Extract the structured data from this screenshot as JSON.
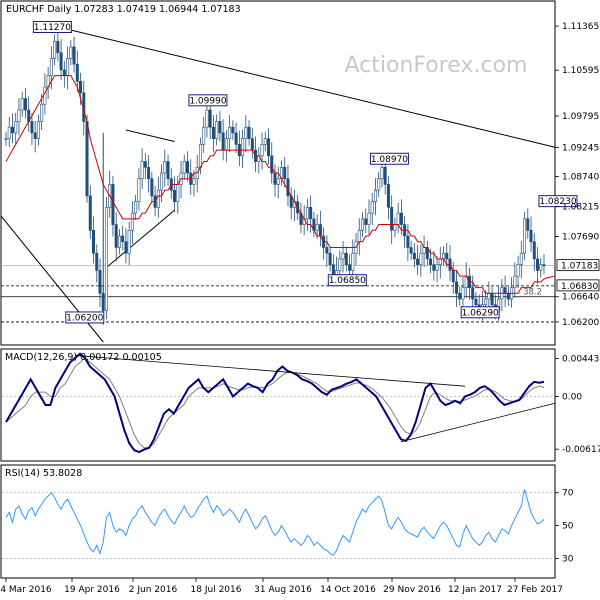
{
  "header": {
    "instrument": "EURCHF Daily",
    "ohlc": "1.07283 1.07419 1.06944 1.07183",
    "watermark": "ActionForex.com"
  },
  "chart_data": [
    {
      "type": "candlestick",
      "title": "EURCHF Daily 1.07283 1.07419 1.06944 1.07183",
      "ylim": [
        1.0585,
        1.1175
      ],
      "y_ticks": [
        "1.11365",
        "1.10595",
        "1.09795",
        "1.09245",
        "1.08740",
        "1.08215",
        "1.07690",
        "1.06640",
        "1.06200"
      ],
      "y_tick_values": [
        1.11365,
        1.10595,
        1.09795,
        1.09245,
        1.0874,
        1.08215,
        1.0769,
        1.0664,
        1.062
      ],
      "price_tags": [
        {
          "text": "1.07183",
          "value": 1.07183,
          "style": "boxed"
        },
        {
          "text": "1.06830",
          "value": 1.0683,
          "style": "boxed"
        }
      ],
      "fib_label": "38.2",
      "annotations": [
        {
          "text": "1.11270",
          "date_index": 14,
          "value": 1.1127
        },
        {
          "text": "1.09990",
          "date_index": 62,
          "value": 1.0999
        },
        {
          "text": "1.08970",
          "date_index": 118,
          "value": 1.0897
        },
        {
          "text": "1.08230",
          "date_index": 170,
          "value": 1.0823
        },
        {
          "text": "1.06850",
          "date_index": 105,
          "value": 1.0685
        },
        {
          "text": "1.06290",
          "date_index": 146,
          "value": 1.0629
        },
        {
          "text": "1.06200",
          "date_index": 24,
          "value": 1.062
        }
      ],
      "horizontal_levels": [
        1.07183,
        1.0683,
        1.0664,
        1.062
      ],
      "ma_color": "#cc0000",
      "candle_color": "#1f4e79",
      "close_series": [
        1.094,
        1.096,
        1.095,
        1.097,
        1.099,
        1.101,
        1.099,
        1.097,
        1.095,
        1.094,
        1.097,
        1.1,
        1.103,
        1.105,
        1.108,
        1.111,
        1.109,
        1.106,
        1.105,
        1.108,
        1.11,
        1.107,
        1.104,
        1.102,
        1.097,
        1.084,
        1.078,
        1.074,
        1.071,
        1.067,
        1.064,
        1.082,
        1.086,
        1.079,
        1.075,
        1.077,
        1.076,
        1.074,
        1.078,
        1.081,
        1.083,
        1.087,
        1.09,
        1.089,
        1.087,
        1.084,
        1.082,
        1.085,
        1.088,
        1.09,
        1.087,
        1.085,
        1.083,
        1.086,
        1.088,
        1.09,
        1.088,
        1.086,
        1.087,
        1.089,
        1.093,
        1.096,
        1.099,
        1.096,
        1.094,
        1.097,
        1.095,
        1.092,
        1.094,
        1.096,
        1.095,
        1.093,
        1.091,
        1.094,
        1.096,
        1.094,
        1.092,
        1.09,
        1.091,
        1.093,
        1.094,
        1.091,
        1.088,
        1.086,
        1.087,
        1.089,
        1.087,
        1.084,
        1.082,
        1.083,
        1.081,
        1.079,
        1.08,
        1.082,
        1.08,
        1.078,
        1.079,
        1.077,
        1.075,
        1.074,
        1.072,
        1.07,
        1.071,
        1.073,
        1.074,
        1.072,
        1.071,
        1.074,
        1.076,
        1.078,
        1.08,
        1.079,
        1.081,
        1.083,
        1.085,
        1.087,
        1.089,
        1.086,
        1.082,
        1.078,
        1.079,
        1.081,
        1.079,
        1.077,
        1.075,
        1.074,
        1.073,
        1.072,
        1.074,
        1.075,
        1.073,
        1.072,
        1.071,
        1.072,
        1.073,
        1.074,
        1.073,
        1.071,
        1.069,
        1.067,
        1.066,
        1.068,
        1.07,
        1.068,
        1.066,
        1.065,
        1.064,
        1.065,
        1.066,
        1.067,
        1.065,
        1.064,
        1.066,
        1.068,
        1.067,
        1.066,
        1.068,
        1.07,
        1.072,
        1.074,
        1.08,
        1.078,
        1.076,
        1.073,
        1.071,
        1.072,
        1.0718
      ],
      "ma_series": [
        1.09,
        1.091,
        1.092,
        1.093,
        1.094,
        1.095,
        1.096,
        1.097,
        1.098,
        1.099,
        1.1,
        1.101,
        1.102,
        1.103,
        1.104,
        1.105,
        1.105,
        1.105,
        1.105,
        1.105,
        1.105,
        1.104,
        1.103,
        1.101,
        1.099,
        1.097,
        1.094,
        1.092,
        1.09,
        1.088,
        1.086,
        1.085,
        1.084,
        1.083,
        1.082,
        1.081,
        1.08,
        1.08,
        1.08,
        1.08,
        1.08,
        1.08,
        1.081,
        1.081,
        1.082,
        1.083,
        1.083,
        1.084,
        1.084,
        1.085,
        1.085,
        1.086,
        1.086,
        1.086,
        1.087,
        1.087,
        1.087,
        1.087,
        1.088,
        1.088,
        1.089,
        1.09,
        1.09,
        1.091,
        1.091,
        1.092,
        1.092,
        1.092,
        1.092,
        1.092,
        1.092,
        1.092,
        1.092,
        1.092,
        1.092,
        1.092,
        1.092,
        1.091,
        1.091,
        1.09,
        1.09,
        1.089,
        1.089,
        1.088,
        1.088,
        1.087,
        1.086,
        1.085,
        1.084,
        1.083,
        1.082,
        1.081,
        1.08,
        1.079,
        1.079,
        1.078,
        1.077,
        1.077,
        1.076,
        1.076,
        1.075,
        1.075,
        1.075,
        1.075,
        1.075,
        1.075,
        1.075,
        1.075,
        1.075,
        1.076,
        1.076,
        1.077,
        1.077,
        1.078,
        1.078,
        1.079,
        1.079,
        1.079,
        1.079,
        1.079,
        1.079,
        1.079,
        1.078,
        1.078,
        1.078,
        1.077,
        1.077,
        1.076,
        1.076,
        1.075,
        1.075,
        1.074,
        1.074,
        1.073,
        1.073,
        1.073,
        1.072,
        1.072,
        1.071,
        1.071,
        1.07,
        1.07,
        1.07,
        1.069,
        1.069,
        1.068,
        1.068,
        1.068,
        1.067,
        1.067,
        1.067,
        1.067,
        1.067,
        1.067,
        1.067,
        1.067,
        1.067,
        1.067,
        1.067,
        1.068,
        1.068,
        1.068,
        1.068,
        1.069,
        1.069,
        1.069,
        1.0695,
        1.0697,
        1.0698,
        1.07
      ]
    },
    {
      "type": "line",
      "title": "MACD(12,26,9) 0.00172 0.00105",
      "ylim": [
        -0.0072,
        0.0052
      ],
      "y_ticks": [
        "0.004435",
        "0.00",
        "-0.00617"
      ],
      "y_tick_values": [
        0.004435,
        0.0,
        -0.00617
      ],
      "series": [
        {
          "name": "",
          "color": "#000080",
          "values": [
            -0.003,
            -0.002,
            -0.001,
            0.0,
            0.001,
            0.002,
            0.001,
            0.0,
            -0.001,
            -0.001,
            0.001,
            0.002,
            0.003,
            0.004,
            0.0045,
            0.005,
            0.0045,
            0.0035,
            0.003,
            0.0025,
            0.002,
            0.001,
            0.0,
            -0.002,
            -0.004,
            -0.0055,
            -0.0063,
            -0.0065,
            -0.0062,
            -0.006,
            -0.005,
            -0.0035,
            -0.002,
            -0.0015,
            -0.002,
            -0.001,
            0.0,
            0.001,
            0.0015,
            0.002,
            0.001,
            0.0005,
            0.001,
            0.0015,
            0.002,
            0.001,
            0.0,
            0.0005,
            0.001,
            0.0015,
            0.0012,
            0.001,
            0.0005,
            0.0015,
            0.002,
            0.003,
            0.0035,
            0.003,
            0.0028,
            0.0025,
            0.002,
            0.0018,
            0.0015,
            0.001,
            0.0005,
            0.0002,
            0.0008,
            0.001,
            0.0012,
            0.0015,
            0.0017,
            0.002,
            0.0015,
            0.001,
            0.0005,
            0.0,
            -0.001,
            -0.002,
            -0.003,
            -0.004,
            -0.005,
            -0.0052,
            -0.0045,
            -0.003,
            -0.001,
            0.001,
            0.0015,
            0.0005,
            -0.0005,
            -0.001,
            -0.0008,
            -0.0005,
            -0.0008,
            0.0,
            0.0002,
            0.0005,
            0.001,
            0.0012,
            0.0008,
            0.0002,
            -0.0005,
            -0.001,
            -0.0008,
            -0.0006,
            -0.0004,
            0.0004,
            0.0012,
            0.0017,
            0.0016,
            0.0017
          ]
        },
        {
          "name": "",
          "color": "#808080",
          "values": [
            -0.003,
            -0.0025,
            -0.002,
            -0.0015,
            -0.001,
            0.0,
            0.0005,
            0.0005,
            0.0005,
            0.0,
            0.0,
            0.001,
            0.0015,
            0.0025,
            0.0035,
            0.004,
            0.0045,
            0.004,
            0.0035,
            0.003,
            0.0025,
            0.002,
            0.001,
            0.0,
            -0.0015,
            -0.003,
            -0.0045,
            -0.0055,
            -0.006,
            -0.006,
            -0.0055,
            -0.0045,
            -0.0035,
            -0.0025,
            -0.002,
            -0.0015,
            -0.001,
            0.0,
            0.0005,
            0.001,
            0.001,
            0.001,
            0.001,
            0.0012,
            0.0015,
            0.0012,
            0.001,
            0.0008,
            0.0008,
            0.001,
            0.0011,
            0.0011,
            0.001,
            0.0012,
            0.0015,
            0.002,
            0.0025,
            0.0028,
            0.0028,
            0.0026,
            0.0024,
            0.0021,
            0.0018,
            0.0015,
            0.001,
            0.0006,
            0.0006,
            0.0008,
            0.001,
            0.0012,
            0.0014,
            0.0016,
            0.0015,
            0.0013,
            0.001,
            0.0005,
            0.0,
            -0.0007,
            -0.0015,
            -0.0025,
            -0.0035,
            -0.0042,
            -0.0044,
            -0.004,
            -0.003,
            -0.0015,
            0.0,
            0.0005,
            0.0002,
            -0.0002,
            -0.0005,
            -0.0005,
            -0.0006,
            -0.0004,
            -0.0002,
            0.0,
            0.0004,
            0.0008,
            0.0008,
            0.0006,
            0.0002,
            -0.0003,
            -0.0005,
            -0.0006,
            -0.0005,
            0.0,
            0.0006,
            0.001,
            0.0012,
            0.00105
          ]
        }
      ],
      "guide_lines": [
        "upper-trendline",
        "lower-trendline"
      ]
    },
    {
      "type": "line",
      "title": "RSI(14) 53.8028",
      "ylim": [
        20,
        85
      ],
      "y_ticks": [
        "70",
        "50",
        "30"
      ],
      "y_tick_values": [
        70,
        50,
        30
      ],
      "series": [
        {
          "name": "",
          "color": "#3399ff",
          "values": [
            55,
            58,
            52,
            60,
            62,
            57,
            54,
            59,
            61,
            56,
            60,
            63,
            66,
            68,
            70,
            67,
            63,
            60,
            64,
            66,
            62,
            58,
            54,
            50,
            45,
            40,
            36,
            34,
            38,
            33,
            40,
            55,
            58,
            50,
            46,
            48,
            47,
            44,
            50,
            54,
            56,
            60,
            62,
            58,
            55,
            52,
            50,
            55,
            58,
            60,
            56,
            53,
            51,
            55,
            58,
            62,
            58,
            55,
            56,
            60,
            63,
            66,
            68,
            62,
            58,
            62,
            60,
            56,
            58,
            60,
            58,
            55,
            52,
            57,
            60,
            56,
            52,
            48,
            50,
            54,
            56,
            52,
            47,
            44,
            46,
            50,
            47,
            43,
            40,
            42,
            40,
            38,
            40,
            44,
            42,
            38,
            40,
            38,
            36,
            35,
            33,
            32,
            35,
            40,
            44,
            42,
            40,
            46,
            52,
            56,
            60,
            58,
            62,
            64,
            66,
            68,
            65,
            58,
            50,
            48,
            52,
            55,
            52,
            48,
            46,
            45,
            44,
            43,
            47,
            49,
            46,
            44,
            42,
            46,
            50,
            52,
            50,
            46,
            42,
            38,
            37,
            45,
            50,
            46,
            42,
            40,
            38,
            40,
            44,
            46,
            42,
            40,
            44,
            48,
            47,
            45,
            50,
            54,
            58,
            62,
            72,
            65,
            58,
            54,
            51,
            52,
            53.8
          ]
        }
      ]
    }
  ],
  "x_axis": {
    "labels": [
      "4 Mar 2016",
      "19 Apr 2016",
      "2 Jun 2016",
      "18 Jul 2016",
      "31 Aug 2016",
      "14 Oct 2016",
      "29 Nov 2016",
      "12 Jan 2017",
      "27 Feb 2017"
    ]
  }
}
